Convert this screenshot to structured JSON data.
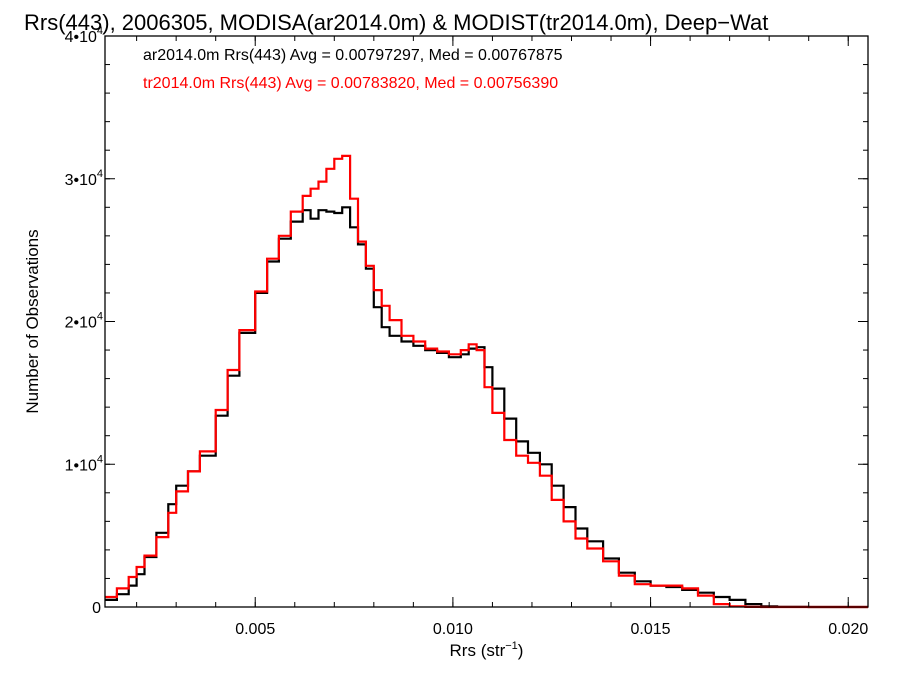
{
  "chart_data": {
    "type": "line",
    "title": "Rrs(443), 2006305, MODISA(ar2014.0m) & MODIST(tr2014.0m), Deep−Wat",
    "xlabel": "Rrs (str",
    "xlabel_sup": "−1",
    "xlabel_close": ")",
    "ylabel": "Number of Observations",
    "xlim": [
      0.0012,
      0.0205
    ],
    "ylim": [
      0,
      40000
    ],
    "x_ticks": [
      {
        "value": 0.005,
        "label": "0.005"
      },
      {
        "value": 0.01,
        "label": "0.010"
      },
      {
        "value": 0.015,
        "label": "0.015"
      },
      {
        "value": 0.02,
        "label": "0.020"
      }
    ],
    "y_ticks": [
      {
        "value": 0,
        "label": "0",
        "sup": ""
      },
      {
        "value": 10000,
        "label": "1•10",
        "sup": "4"
      },
      {
        "value": 20000,
        "label": "2•10",
        "sup": "4"
      },
      {
        "value": 30000,
        "label": "3•10",
        "sup": "4"
      },
      {
        "value": 40000,
        "label": "4•10",
        "sup": "4"
      }
    ],
    "grid": false,
    "legend_position": "top-left",
    "series": [
      {
        "name": "ar2014.0m Rrs(443) Avg = 0.00797297, Med = 0.00767875",
        "color": "#000000",
        "step": true,
        "x": [
          0.0012,
          0.0015,
          0.0018,
          0.002,
          0.0022,
          0.0025,
          0.0028,
          0.003,
          0.0033,
          0.0036,
          0.004,
          0.0043,
          0.0046,
          0.005,
          0.0053,
          0.0056,
          0.0059,
          0.0062,
          0.0064,
          0.0066,
          0.0068,
          0.007,
          0.0072,
          0.0074,
          0.0076,
          0.0078,
          0.008,
          0.0082,
          0.0084,
          0.0087,
          0.009,
          0.0093,
          0.0096,
          0.0099,
          0.0102,
          0.0104,
          0.0106,
          0.0108,
          0.011,
          0.0113,
          0.0116,
          0.0119,
          0.0122,
          0.0125,
          0.0128,
          0.0131,
          0.0134,
          0.0138,
          0.0142,
          0.0146,
          0.015,
          0.0154,
          0.0158,
          0.0162,
          0.0166,
          0.017,
          0.0174,
          0.0178,
          0.0182,
          0.019,
          0.02,
          0.0205
        ],
        "y": [
          500,
          900,
          1500,
          2300,
          3500,
          5200,
          7200,
          8500,
          9500,
          10600,
          13400,
          16200,
          19200,
          22000,
          24200,
          25800,
          27000,
          27800,
          27200,
          27800,
          27700,
          27600,
          28000,
          26600,
          25400,
          23700,
          21000,
          19600,
          19000,
          18600,
          18300,
          18000,
          17800,
          17500,
          17700,
          18100,
          18200,
          16800,
          15300,
          13200,
          11600,
          10800,
          10000,
          8500,
          7000,
          5500,
          4600,
          3400,
          2400,
          1800,
          1500,
          1400,
          1200,
          1000,
          700,
          500,
          200,
          50,
          10,
          0,
          0,
          0
        ]
      },
      {
        "name": "tr2014.0m Rrs(443) Avg = 0.00783820, Med = 0.00756390",
        "color": "#ff0000",
        "step": true,
        "x": [
          0.0012,
          0.0015,
          0.0018,
          0.002,
          0.0022,
          0.0025,
          0.0028,
          0.003,
          0.0033,
          0.0036,
          0.004,
          0.0043,
          0.0046,
          0.005,
          0.0053,
          0.0056,
          0.0059,
          0.0062,
          0.0064,
          0.0066,
          0.0068,
          0.007,
          0.0072,
          0.0074,
          0.0076,
          0.0078,
          0.008,
          0.0082,
          0.0084,
          0.0087,
          0.009,
          0.0093,
          0.0096,
          0.0099,
          0.0102,
          0.0104,
          0.0106,
          0.0108,
          0.011,
          0.0113,
          0.0116,
          0.0119,
          0.0122,
          0.0125,
          0.0128,
          0.0131,
          0.0134,
          0.0138,
          0.0142,
          0.0146,
          0.015,
          0.0154,
          0.0158,
          0.0162,
          0.0166,
          0.017,
          0.0174,
          0.0178,
          0.0182,
          0.019,
          0.02,
          0.0205
        ],
        "y": [
          700,
          1300,
          2100,
          2800,
          3600,
          4900,
          6600,
          8100,
          9500,
          10900,
          13800,
          16600,
          19400,
          22100,
          24400,
          26000,
          27700,
          28800,
          29300,
          29800,
          30700,
          31400,
          31600,
          28600,
          25600,
          23900,
          22200,
          21100,
          20100,
          19000,
          18600,
          18100,
          17900,
          17700,
          18000,
          18400,
          18000,
          15400,
          13600,
          11700,
          10600,
          10100,
          9200,
          7500,
          6000,
          4800,
          4100,
          3200,
          2200,
          1600,
          1500,
          1500,
          1300,
          800,
          200,
          50,
          10,
          0,
          0,
          0,
          0,
          0
        ]
      }
    ]
  }
}
